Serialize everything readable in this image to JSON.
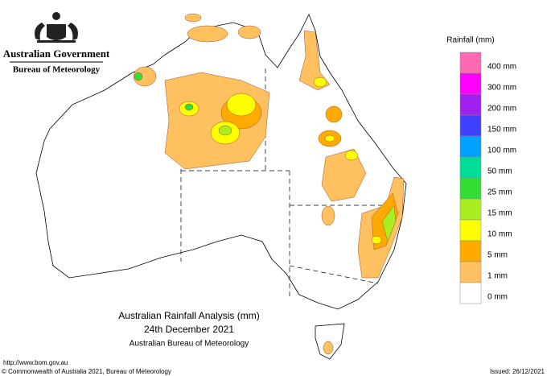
{
  "header": {
    "title": "Australian Government",
    "subtitle": "Bureau of Meteorology"
  },
  "map": {
    "title": "Australian Rainfall Analysis (mm)",
    "date": "24th December 2021",
    "source": "Australian Bureau of Meteorology"
  },
  "legend": {
    "title": "Rainfall (mm)",
    "items": [
      {
        "label": "400 mm",
        "color": "#ff69b4"
      },
      {
        "label": "300 mm",
        "color": "#ff00ff"
      },
      {
        "label": "200 mm",
        "color": "#a020f0"
      },
      {
        "label": "150 mm",
        "color": "#4040ff"
      },
      {
        "label": "100 mm",
        "color": "#00a0ff"
      },
      {
        "label": "50 mm",
        "color": "#00dd99"
      },
      {
        "label": "25 mm",
        "color": "#33dd33"
      },
      {
        "label": "15 mm",
        "color": "#aaee22"
      },
      {
        "label": "10 mm",
        "color": "#ffff00"
      },
      {
        "label": "5 mm",
        "color": "#ffaa00"
      },
      {
        "label": "1 mm",
        "color": "#ffc060"
      },
      {
        "label": "0 mm",
        "color": "#ffffff"
      }
    ]
  },
  "footer": {
    "url": "http://www.bom.gov.au",
    "copyright": "© Commonwealth of Australia 2021, Bureau of Meteorology",
    "issued": "Issued: 26/12/2021"
  }
}
